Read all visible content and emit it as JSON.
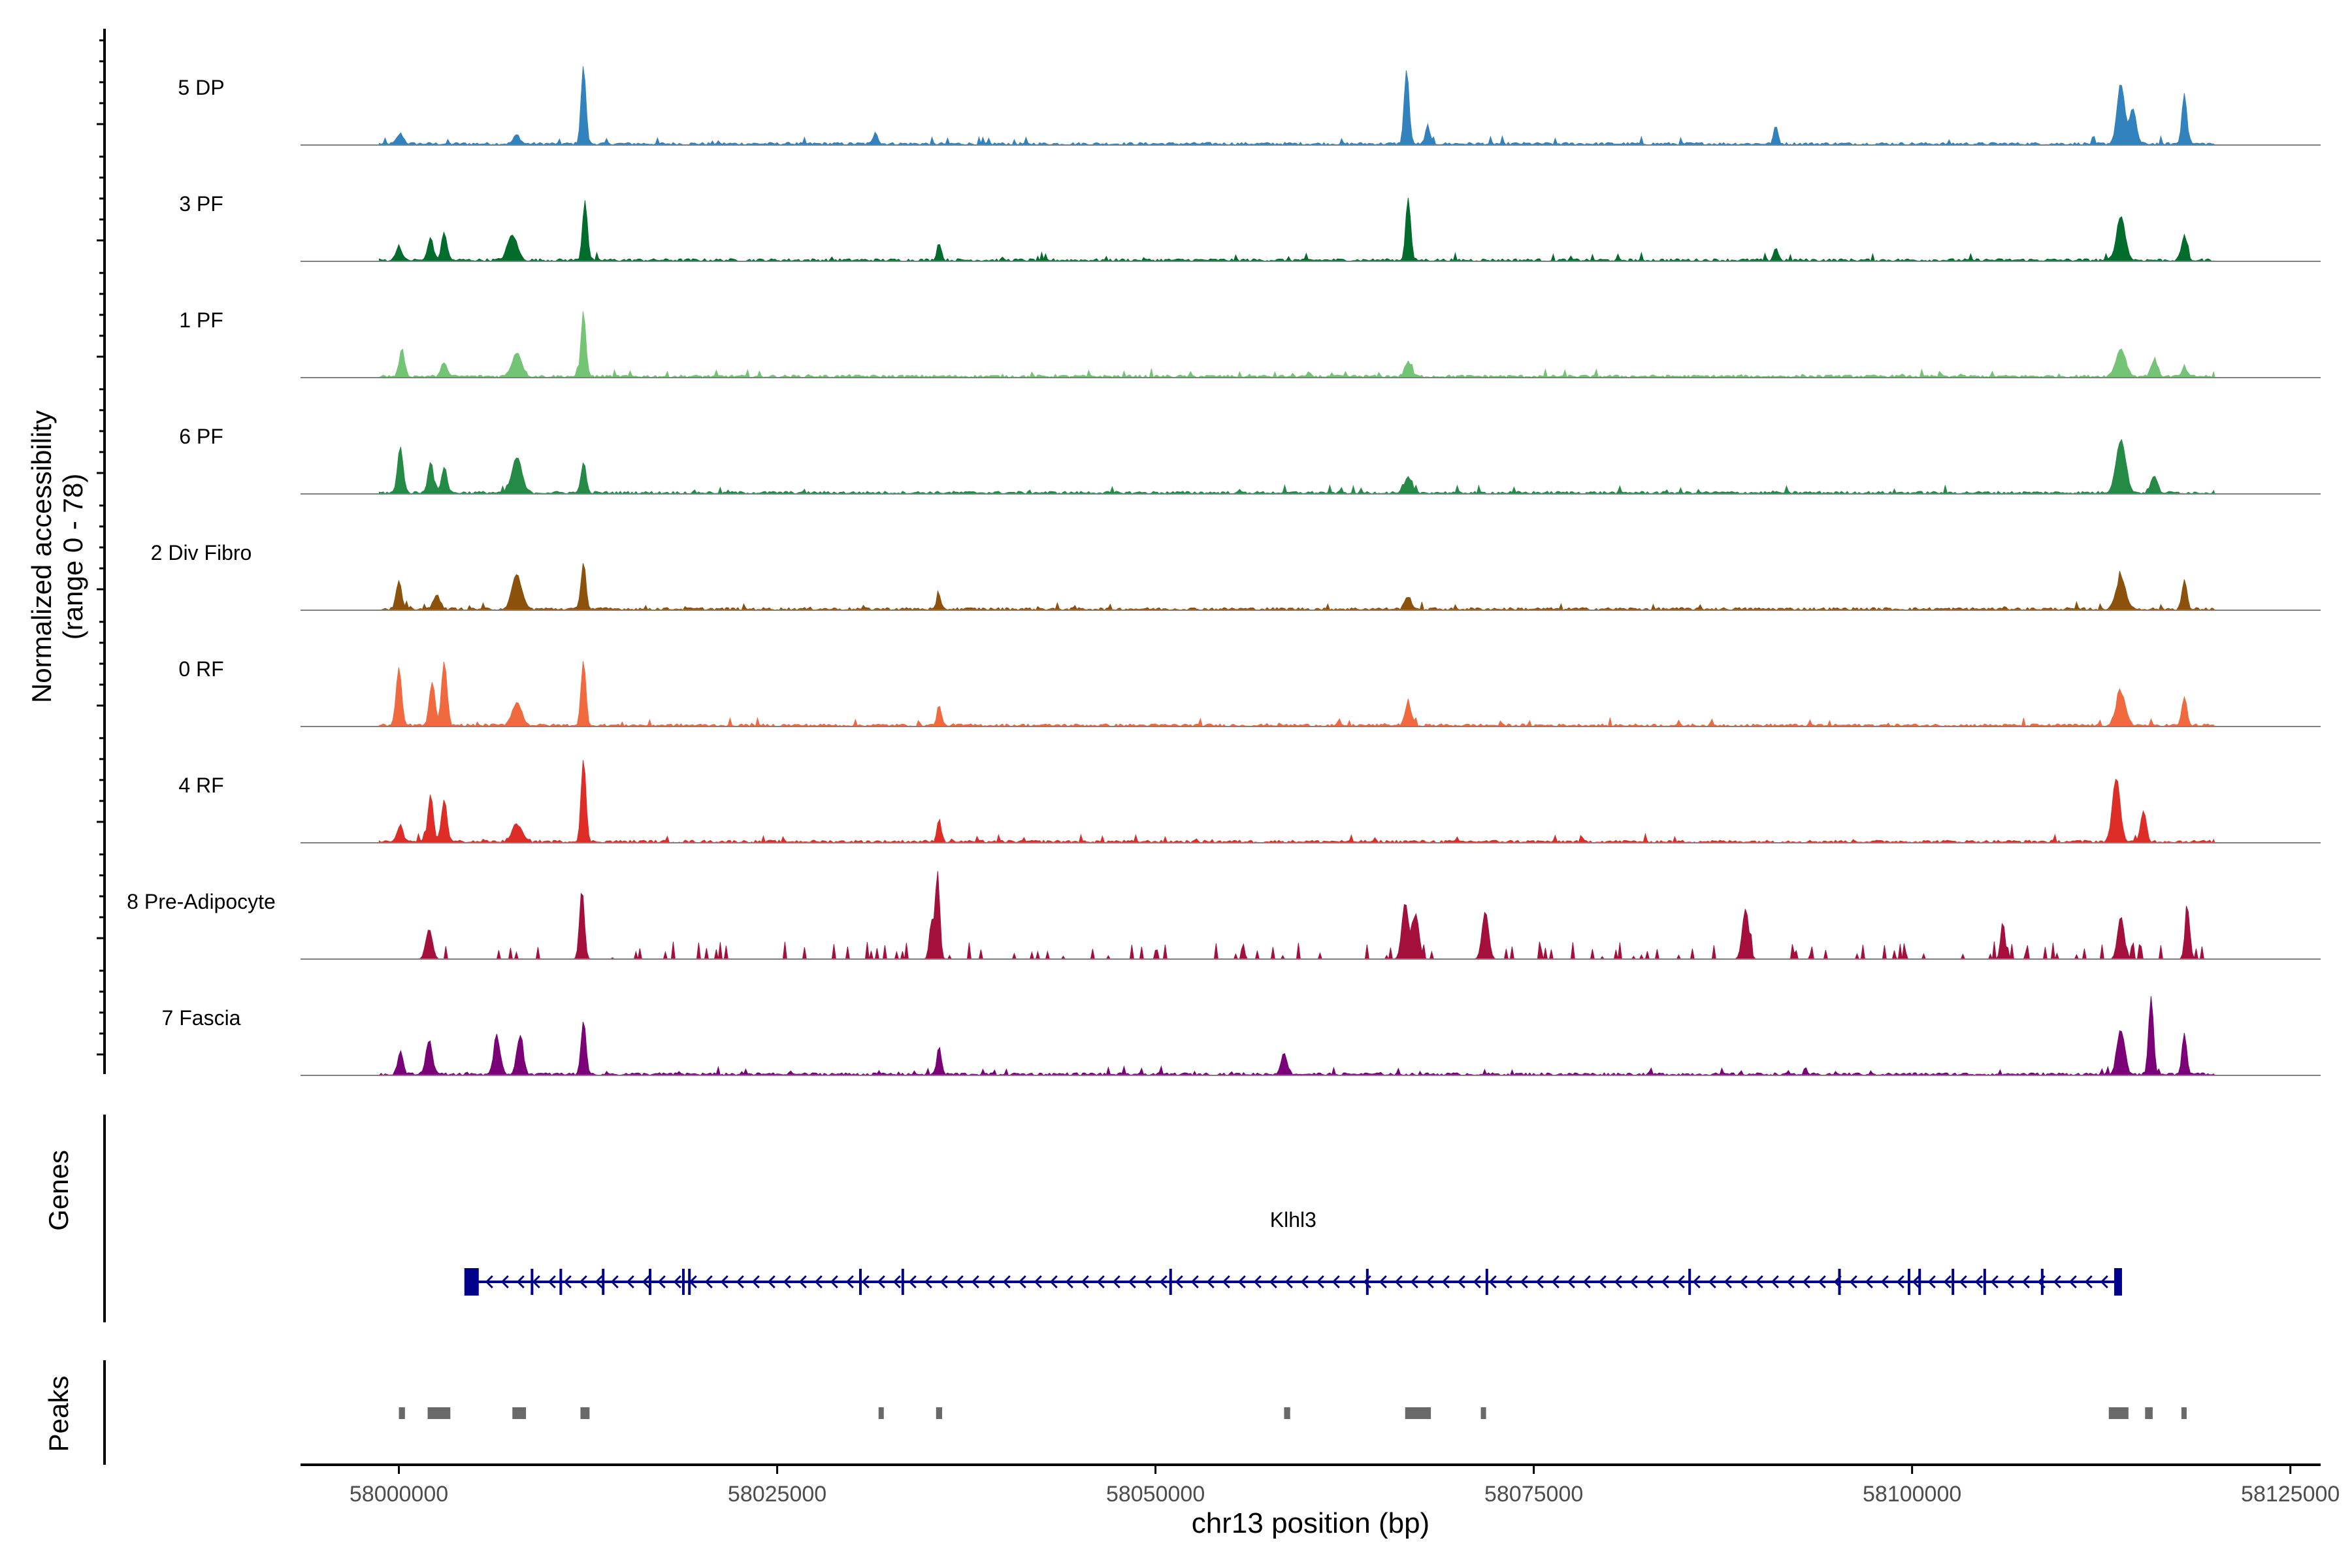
{
  "chart_data": {
    "type": "area",
    "title": "",
    "ylabel_line1": "Normalized accessibility",
    "ylabel_line2": "(range 0 - 78)",
    "genes_label": "Genes",
    "peaks_label": "Peaks",
    "xlabel": "chr13 position (bp)",
    "xlim": [
      57993500,
      58127000
    ],
    "x_ticks": [
      58000000,
      58025000,
      58050000,
      58075000,
      58100000,
      58125000
    ],
    "x_tick_labels": [
      "58000000",
      "58025000",
      "58050000",
      "58075000",
      "58100000",
      "58125000"
    ],
    "ylim": [
      0,
      78
    ],
    "region": [
      58000000,
      58120000
    ],
    "tracks": [
      {
        "name": "5 DP",
        "color": "#3182BD",
        "peaks": [
          [
            58000100,
            8,
            300
          ],
          [
            58007800,
            7,
            300
          ],
          [
            58012200,
            62,
            220
          ],
          [
            58031500,
            10,
            200
          ],
          [
            58066600,
            60,
            220
          ],
          [
            58068000,
            15,
            200
          ],
          [
            58091000,
            14,
            200
          ],
          [
            58113800,
            48,
            350
          ],
          [
            58114600,
            28,
            300
          ],
          [
            58118000,
            41,
            220
          ]
        ]
      },
      {
        "name": "3 PF",
        "color": "#006D2C",
        "peaks": [
          [
            58000000,
            12,
            250
          ],
          [
            58002100,
            18,
            250
          ],
          [
            58003000,
            22,
            250
          ],
          [
            58007500,
            20,
            450
          ],
          [
            58012300,
            48,
            220
          ],
          [
            58035700,
            14,
            200
          ],
          [
            58066700,
            50,
            220
          ],
          [
            58091000,
            10,
            200
          ],
          [
            58113800,
            35,
            400
          ],
          [
            58118000,
            21,
            220
          ]
        ]
      },
      {
        "name": "1 PF",
        "color": "#74C476",
        "peaks": [
          [
            58000200,
            21,
            250
          ],
          [
            58003000,
            12,
            250
          ],
          [
            58007800,
            19,
            450
          ],
          [
            58012200,
            52,
            220
          ],
          [
            58066700,
            12,
            300
          ],
          [
            58113800,
            22,
            450
          ],
          [
            58116000,
            13,
            300
          ],
          [
            58118000,
            7,
            220
          ]
        ]
      },
      {
        "name": "6 PF",
        "color": "#238B45",
        "peaks": [
          [
            58000100,
            37,
            250
          ],
          [
            58002100,
            25,
            250
          ],
          [
            58003000,
            21,
            250
          ],
          [
            58007800,
            28,
            450
          ],
          [
            58012200,
            25,
            220
          ],
          [
            58066700,
            12,
            300
          ],
          [
            58113800,
            42,
            450
          ],
          [
            58116000,
            13,
            300
          ]
        ]
      },
      {
        "name": "2 Div Fibro",
        "color": "#8C510A",
        "peaks": [
          [
            58000000,
            22,
            250
          ],
          [
            58002500,
            12,
            300
          ],
          [
            58007800,
            27,
            450
          ],
          [
            58012200,
            38,
            220
          ],
          [
            58035700,
            10,
            200
          ],
          [
            58066700,
            10,
            300
          ],
          [
            58113800,
            25,
            450
          ],
          [
            58118000,
            23,
            220
          ]
        ]
      },
      {
        "name": "0 RF",
        "color": "#F16A3F",
        "peaks": [
          [
            58000000,
            45,
            250
          ],
          [
            58002200,
            35,
            250
          ],
          [
            58003000,
            50,
            250
          ],
          [
            58007800,
            18,
            450
          ],
          [
            58012200,
            51,
            220
          ],
          [
            58035700,
            16,
            200
          ],
          [
            58066700,
            17,
            300
          ],
          [
            58113800,
            25,
            450
          ],
          [
            58118000,
            23,
            220
          ]
        ]
      },
      {
        "name": "4 RF",
        "color": "#DE2D26",
        "peaks": [
          [
            58000100,
            14,
            250
          ],
          [
            58002100,
            37,
            250
          ],
          [
            58003000,
            34,
            250
          ],
          [
            58007800,
            14,
            450
          ],
          [
            58012200,
            66,
            220
          ],
          [
            58035700,
            18,
            200
          ],
          [
            58113500,
            51,
            350
          ],
          [
            58115300,
            25,
            250
          ]
        ]
      },
      {
        "name": "8 Pre-Adipocyte",
        "color": "#A50F3C",
        "peaks": [
          [
            58002000,
            24,
            300
          ],
          [
            58012100,
            56,
            220
          ],
          [
            58035600,
            70,
            200
          ],
          [
            58035200,
            30,
            200
          ],
          [
            58066500,
            45,
            300
          ],
          [
            58067200,
            36,
            300
          ],
          [
            58071800,
            38,
            300
          ],
          [
            58089000,
            40,
            300
          ],
          [
            58106000,
            30,
            200
          ],
          [
            58113800,
            34,
            300
          ],
          [
            58118200,
            40,
            220
          ]
        ]
      },
      {
        "name": "7 Fascia",
        "color": "#7A0177",
        "peaks": [
          [
            58000100,
            18,
            250
          ],
          [
            58002000,
            27,
            300
          ],
          [
            58006500,
            28,
            300
          ],
          [
            58008000,
            30,
            300
          ],
          [
            58012200,
            43,
            220
          ],
          [
            58035700,
            22,
            200
          ],
          [
            58058500,
            16,
            300
          ],
          [
            58113800,
            35,
            350
          ],
          [
            58115800,
            62,
            220
          ],
          [
            58118000,
            32,
            220
          ]
        ]
      }
    ],
    "genes": [
      {
        "name": "Klhl3",
        "start": 58004500,
        "end": 58113700,
        "strand": "-",
        "color": "#00008B",
        "exons": [
          58008800,
          58010700,
          58013500,
          58016600,
          58018800,
          58019200,
          58030500,
          58033300,
          58051000,
          58064000,
          58071900,
          58085300,
          58095200,
          58099800,
          58100500,
          58102700,
          58104800,
          58108600
        ]
      }
    ],
    "peak_regions": [
      [
        58000000,
        58000400
      ],
      [
        58001900,
        58003400
      ],
      [
        58007500,
        58008400
      ],
      [
        58012000,
        58012600
      ],
      [
        58031700,
        58032000
      ],
      [
        58035500,
        58035900
      ],
      [
        58058500,
        58058900
      ],
      [
        58066500,
        58068200
      ],
      [
        58071500,
        58071700
      ],
      [
        58113000,
        58114300
      ],
      [
        58115400,
        58115900
      ],
      [
        58117800,
        58118100
      ]
    ]
  }
}
